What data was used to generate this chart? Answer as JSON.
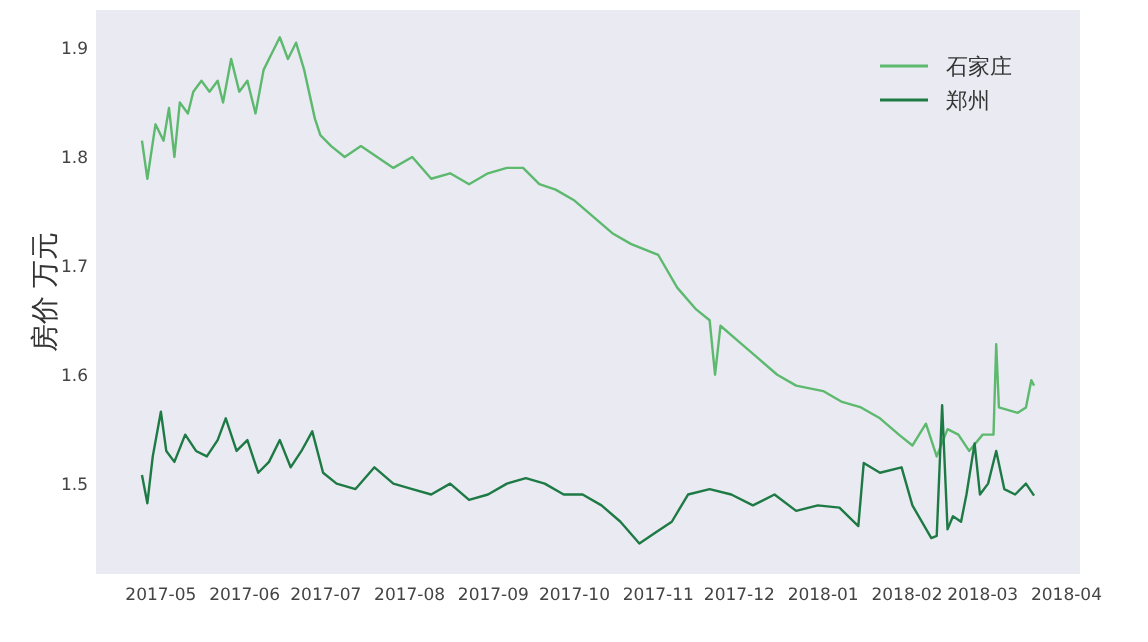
{
  "chart_data": {
    "type": "line",
    "ylabel": "房价 万元",
    "grid": false,
    "legend": "top right",
    "marker": "none",
    "line_style": "solid",
    "xlim": [
      "2017-04-07",
      "2018-04-06"
    ],
    "ylim": [
      1.417,
      1.935
    ],
    "xticks": [
      "2017-05",
      "2017-06",
      "2017-07",
      "2017-08",
      "2017-09",
      "2017-10",
      "2017-11",
      "2017-12",
      "2018-01",
      "2018-02",
      "2018-03",
      "2018-04"
    ],
    "yticks": [
      1.5,
      1.6,
      1.7,
      1.8,
      1.9
    ],
    "series": [
      {
        "name": "石家庄",
        "color": "#5cb96e",
        "x": [
          "2017-04-24",
          "2017-04-26",
          "2017-04-29",
          "2017-05-02",
          "2017-05-04",
          "2017-05-06",
          "2017-05-08",
          "2017-05-11",
          "2017-05-13",
          "2017-05-16",
          "2017-05-19",
          "2017-05-22",
          "2017-05-24",
          "2017-05-27",
          "2017-05-30",
          "2017-06-02",
          "2017-06-05",
          "2017-06-08",
          "2017-06-11",
          "2017-06-14",
          "2017-06-17",
          "2017-06-20",
          "2017-06-23",
          "2017-06-27",
          "2017-06-29",
          "2017-07-03",
          "2017-07-08",
          "2017-07-14",
          "2017-07-20",
          "2017-07-26",
          "2017-08-02",
          "2017-08-09",
          "2017-08-16",
          "2017-08-23",
          "2017-08-30",
          "2017-09-06",
          "2017-09-12",
          "2017-09-18",
          "2017-09-24",
          "2017-10-01",
          "2017-10-08",
          "2017-10-15",
          "2017-10-22",
          "2017-11-01",
          "2017-11-08",
          "2017-11-15",
          "2017-11-20",
          "2017-11-22",
          "2017-11-24",
          "2017-12-01",
          "2017-12-08",
          "2017-12-15",
          "2017-12-22",
          "2018-01-01",
          "2018-01-08",
          "2018-01-15",
          "2018-01-22",
          "2018-01-29",
          "2018-02-03",
          "2018-02-08",
          "2018-02-12",
          "2018-02-16",
          "2018-02-20",
          "2018-02-24",
          "2018-03-01",
          "2018-03-05",
          "2018-03-06",
          "2018-03-07",
          "2018-03-14",
          "2018-03-17",
          "2018-03-19",
          "2018-03-20"
        ],
        "values": [
          1.815,
          1.78,
          1.83,
          1.815,
          1.845,
          1.8,
          1.85,
          1.84,
          1.86,
          1.87,
          1.86,
          1.87,
          1.85,
          1.89,
          1.86,
          1.87,
          1.84,
          1.88,
          1.895,
          1.91,
          1.89,
          1.905,
          1.88,
          1.835,
          1.82,
          1.81,
          1.8,
          1.81,
          1.8,
          1.79,
          1.8,
          1.78,
          1.785,
          1.775,
          1.785,
          1.79,
          1.79,
          1.775,
          1.77,
          1.76,
          1.745,
          1.73,
          1.72,
          1.71,
          1.68,
          1.66,
          1.65,
          1.6,
          1.645,
          1.63,
          1.615,
          1.6,
          1.59,
          1.585,
          1.575,
          1.57,
          1.56,
          1.545,
          1.535,
          1.555,
          1.525,
          1.55,
          1.545,
          1.53,
          1.545,
          1.545,
          1.628,
          1.57,
          1.565,
          1.57,
          1.595,
          1.59
        ]
      },
      {
        "name": "郑州",
        "color": "#1e7a44",
        "x": [
          "2017-04-24",
          "2017-04-26",
          "2017-04-28",
          "2017-05-01",
          "2017-05-03",
          "2017-05-06",
          "2017-05-10",
          "2017-05-14",
          "2017-05-18",
          "2017-05-22",
          "2017-05-25",
          "2017-05-29",
          "2017-06-02",
          "2017-06-06",
          "2017-06-10",
          "2017-06-14",
          "2017-06-18",
          "2017-06-22",
          "2017-06-26",
          "2017-06-30",
          "2017-07-05",
          "2017-07-12",
          "2017-07-19",
          "2017-07-26",
          "2017-08-02",
          "2017-08-09",
          "2017-08-16",
          "2017-08-23",
          "2017-08-30",
          "2017-09-06",
          "2017-09-13",
          "2017-09-20",
          "2017-09-27",
          "2017-10-04",
          "2017-10-11",
          "2017-10-18",
          "2017-10-25",
          "2017-10-31",
          "2017-11-06",
          "2017-11-12",
          "2017-11-20",
          "2017-11-28",
          "2017-12-06",
          "2017-12-14",
          "2017-12-22",
          "2017-12-30",
          "2018-01-07",
          "2018-01-14",
          "2018-01-16",
          "2018-01-22",
          "2018-01-30",
          "2018-02-03",
          "2018-02-10",
          "2018-02-12",
          "2018-02-14",
          "2018-02-16",
          "2018-02-18",
          "2018-02-21",
          "2018-02-23",
          "2018-02-26",
          "2018-02-28",
          "2018-03-03",
          "2018-03-06",
          "2018-03-09",
          "2018-03-13",
          "2018-03-17",
          "2018-03-20"
        ],
        "values": [
          1.508,
          1.482,
          1.525,
          1.566,
          1.53,
          1.52,
          1.545,
          1.53,
          1.525,
          1.54,
          1.56,
          1.53,
          1.54,
          1.51,
          1.52,
          1.54,
          1.515,
          1.53,
          1.548,
          1.51,
          1.5,
          1.495,
          1.515,
          1.5,
          1.495,
          1.49,
          1.5,
          1.485,
          1.49,
          1.5,
          1.505,
          1.5,
          1.49,
          1.49,
          1.48,
          1.465,
          1.445,
          1.455,
          1.465,
          1.49,
          1.495,
          1.49,
          1.48,
          1.49,
          1.475,
          1.48,
          1.478,
          1.461,
          1.519,
          1.51,
          1.515,
          1.48,
          1.45,
          1.452,
          1.572,
          1.458,
          1.47,
          1.465,
          1.49,
          1.537,
          1.49,
          1.5,
          1.53,
          1.495,
          1.49,
          1.5,
          1.489
        ]
      }
    ]
  }
}
